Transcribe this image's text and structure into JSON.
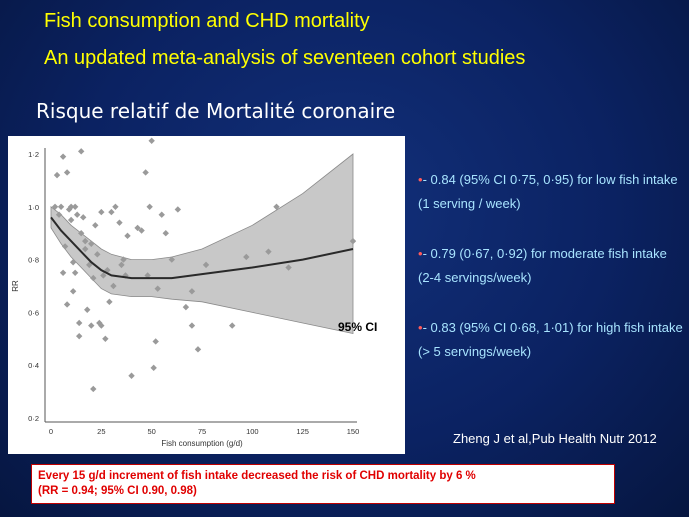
{
  "slide": {
    "title_line1": "Fish consumption and CHD mortality",
    "title_line2": "An updated meta-analysis of seventeen cohort studies",
    "subtitle": "Risque relatif de Mortalité  coronaire",
    "bullets": [
      {
        "marker": "•",
        "text": "- 0.84 (95% CI 0·75, 0·95) for low fish intake (1 serving / week)"
      },
      {
        "marker": "•",
        "text": "- 0.79 (0·67, 0·92) for moderate fish intake (2-4 servings/week)"
      },
      {
        "marker": "•",
        "text": "- 0.83 (95% CI 0·68, 1·01) for high fish intake (> 5 servings/week)"
      }
    ],
    "citation": "Zheng J et al,Pub Health Nutr 2012",
    "callout_line1": "Every 15 g/d increment of fish intake decreased the risk of CHD mortality by 6 %",
    "callout_line2": "(RR = 0.94;  95% CI 0.90, 0.98)",
    "colors": {
      "title": "#ffff00",
      "bullet_text": "#a8e4ff",
      "bullet_marker": "#ff5a5a",
      "callout_text": "#e00000",
      "background": "#0b2262"
    }
  },
  "chart_data": {
    "type": "scatter",
    "title": "",
    "xlabel": "Fish consumption (g/d)",
    "ylabel": "RR",
    "xlim": [
      0,
      150
    ],
    "ylim": [
      0.2,
      1.2
    ],
    "x_ticks": [
      0,
      25,
      50,
      75,
      100,
      125,
      150
    ],
    "y_ticks": [
      {
        "value": 0.2,
        "label": "0·2"
      },
      {
        "value": 0.4,
        "label": "0·4"
      },
      {
        "value": 0.6,
        "label": "0·6"
      },
      {
        "value": 0.8,
        "label": "0·8"
      },
      {
        "value": 1.0,
        "label": "1·0"
      },
      {
        "value": 1.2,
        "label": "1·2"
      }
    ],
    "grid": false,
    "annotation": "95% CI",
    "fit_curve": {
      "x": [
        0,
        5,
        10,
        15,
        20,
        25,
        30,
        40,
        50,
        60,
        75,
        100,
        125,
        150
      ],
      "y": [
        0.96,
        0.91,
        0.87,
        0.83,
        0.79,
        0.76,
        0.74,
        0.73,
        0.73,
        0.73,
        0.745,
        0.77,
        0.8,
        0.84
      ]
    },
    "ci_band": {
      "x": [
        0,
        5,
        10,
        15,
        20,
        25,
        30,
        40,
        50,
        60,
        75,
        100,
        125,
        150
      ],
      "upper": [
        1.0,
        0.97,
        0.93,
        0.9,
        0.87,
        0.84,
        0.82,
        0.8,
        0.8,
        0.81,
        0.84,
        0.93,
        1.05,
        1.2
      ],
      "lower": [
        0.92,
        0.86,
        0.81,
        0.77,
        0.73,
        0.69,
        0.67,
        0.66,
        0.66,
        0.65,
        0.64,
        0.6,
        0.56,
        0.52
      ]
    },
    "points": [
      [
        2,
        1.0
      ],
      [
        3,
        1.12
      ],
      [
        4,
        0.97
      ],
      [
        5,
        1.0
      ],
      [
        6,
        0.75
      ],
      [
        6,
        1.19
      ],
      [
        7,
        0.85
      ],
      [
        8,
        0.63
      ],
      [
        8,
        1.13
      ],
      [
        9,
        0.99
      ],
      [
        10,
        1.0
      ],
      [
        10,
        0.95
      ],
      [
        11,
        0.79
      ],
      [
        11,
        0.68
      ],
      [
        12,
        1.0
      ],
      [
        12,
        0.75
      ],
      [
        13,
        0.97
      ],
      [
        14,
        0.56
      ],
      [
        14,
        0.51
      ],
      [
        15,
        0.9
      ],
      [
        15,
        1.21
      ],
      [
        16,
        0.96
      ],
      [
        17,
        0.87
      ],
      [
        17,
        0.84
      ],
      [
        18,
        0.61
      ],
      [
        19,
        0.78
      ],
      [
        20,
        0.86
      ],
      [
        20,
        0.55
      ],
      [
        21,
        0.73
      ],
      [
        21,
        0.31
      ],
      [
        22,
        0.93
      ],
      [
        23,
        0.82
      ],
      [
        24,
        0.56
      ],
      [
        25,
        0.55
      ],
      [
        25,
        0.98
      ],
      [
        26,
        0.74
      ],
      [
        27,
        0.5
      ],
      [
        28,
        0.76
      ],
      [
        29,
        0.64
      ],
      [
        30,
        0.98
      ],
      [
        31,
        0.7
      ],
      [
        32,
        1.0
      ],
      [
        34,
        0.94
      ],
      [
        35,
        0.78
      ],
      [
        36,
        0.8
      ],
      [
        37,
        0.74
      ],
      [
        38,
        0.89
      ],
      [
        40,
        0.36
      ],
      [
        43,
        0.92
      ],
      [
        45,
        0.91
      ],
      [
        47,
        1.13
      ],
      [
        48,
        0.74
      ],
      [
        49,
        1.0
      ],
      [
        50,
        1.25
      ],
      [
        51,
        0.39
      ],
      [
        52,
        0.49
      ],
      [
        53,
        0.69
      ],
      [
        55,
        0.97
      ],
      [
        57,
        0.9
      ],
      [
        60,
        0.8
      ],
      [
        63,
        0.99
      ],
      [
        67,
        0.62
      ],
      [
        70,
        0.68
      ],
      [
        70,
        0.55
      ],
      [
        73,
        0.46
      ],
      [
        77,
        0.78
      ],
      [
        90,
        0.55
      ],
      [
        97,
        0.81
      ],
      [
        108,
        0.83
      ],
      [
        112,
        1.0
      ],
      [
        118,
        0.77
      ],
      [
        150,
        0.87
      ]
    ]
  }
}
